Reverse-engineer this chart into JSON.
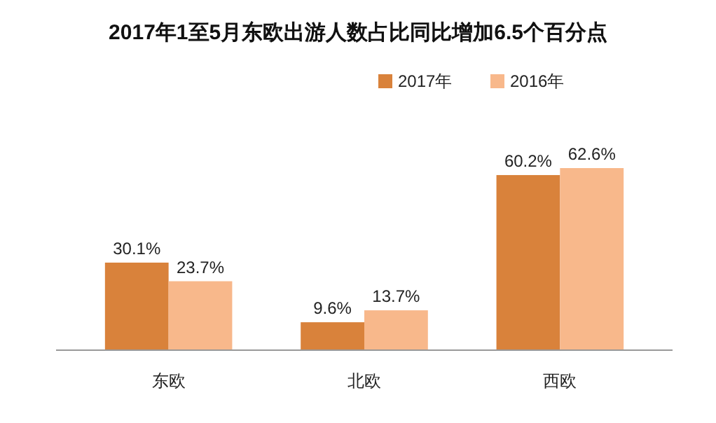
{
  "chart_data": {
    "type": "bar",
    "title": "2017年1至5月东欧出游人数占比同比增加6.5个百分点",
    "categories": [
      "东欧",
      "北欧",
      "西欧"
    ],
    "series": [
      {
        "name": "2017年",
        "color": "#d9823b",
        "values": [
          30.1,
          9.6,
          60.2
        ],
        "value_labels": [
          "30.1%",
          "9.6%",
          "60.2%"
        ]
      },
      {
        "name": "2016年",
        "color": "#f8b88b",
        "values": [
          23.7,
          13.7,
          62.6
        ],
        "value_labels": [
          "23.7%",
          "13.7%",
          "62.6%"
        ]
      }
    ],
    "legend": "top right",
    "grid": false
  }
}
